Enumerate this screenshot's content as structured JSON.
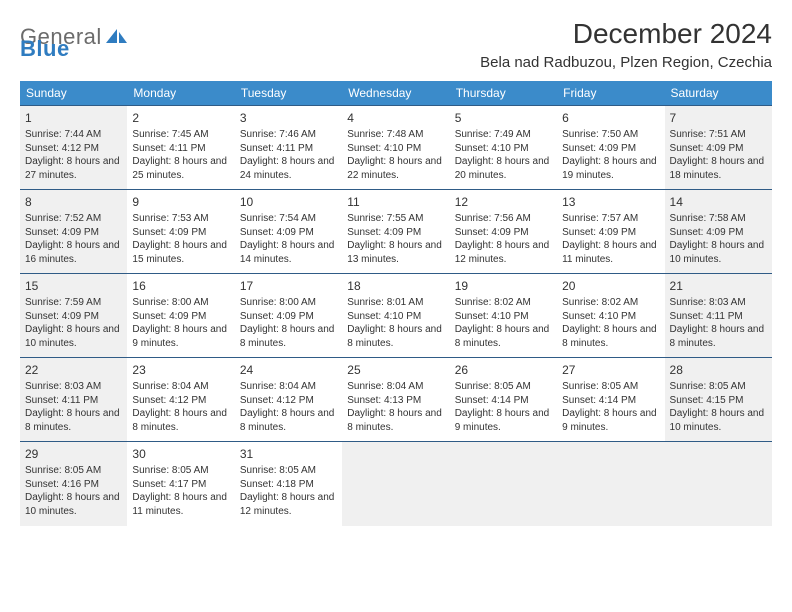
{
  "brand": {
    "part1": "General",
    "part2": "Blue"
  },
  "title": "December 2024",
  "location": "Bela nad Radbuzou, Plzen Region, Czechia",
  "colors": {
    "header_bg": "#3b8bca",
    "header_text": "#ffffff",
    "rule": "#2f5b86",
    "shaded_bg": "#f0f0f0",
    "body_bg": "#ffffff",
    "text": "#333333",
    "brand_gray": "#6b6b6b",
    "brand_blue": "#2f7cc0"
  },
  "dow": [
    "Sunday",
    "Monday",
    "Tuesday",
    "Wednesday",
    "Thursday",
    "Friday",
    "Saturday"
  ],
  "weeks": [
    [
      {
        "n": 1,
        "sr": "7:44 AM",
        "ss": "4:12 PM",
        "dl": "8 hours and 27 minutes.",
        "sh": true
      },
      {
        "n": 2,
        "sr": "7:45 AM",
        "ss": "4:11 PM",
        "dl": "8 hours and 25 minutes."
      },
      {
        "n": 3,
        "sr": "7:46 AM",
        "ss": "4:11 PM",
        "dl": "8 hours and 24 minutes."
      },
      {
        "n": 4,
        "sr": "7:48 AM",
        "ss": "4:10 PM",
        "dl": "8 hours and 22 minutes."
      },
      {
        "n": 5,
        "sr": "7:49 AM",
        "ss": "4:10 PM",
        "dl": "8 hours and 20 minutes."
      },
      {
        "n": 6,
        "sr": "7:50 AM",
        "ss": "4:09 PM",
        "dl": "8 hours and 19 minutes."
      },
      {
        "n": 7,
        "sr": "7:51 AM",
        "ss": "4:09 PM",
        "dl": "8 hours and 18 minutes.",
        "sh": true
      }
    ],
    [
      {
        "n": 8,
        "sr": "7:52 AM",
        "ss": "4:09 PM",
        "dl": "8 hours and 16 minutes.",
        "sh": true
      },
      {
        "n": 9,
        "sr": "7:53 AM",
        "ss": "4:09 PM",
        "dl": "8 hours and 15 minutes."
      },
      {
        "n": 10,
        "sr": "7:54 AM",
        "ss": "4:09 PM",
        "dl": "8 hours and 14 minutes."
      },
      {
        "n": 11,
        "sr": "7:55 AM",
        "ss": "4:09 PM",
        "dl": "8 hours and 13 minutes."
      },
      {
        "n": 12,
        "sr": "7:56 AM",
        "ss": "4:09 PM",
        "dl": "8 hours and 12 minutes."
      },
      {
        "n": 13,
        "sr": "7:57 AM",
        "ss": "4:09 PM",
        "dl": "8 hours and 11 minutes."
      },
      {
        "n": 14,
        "sr": "7:58 AM",
        "ss": "4:09 PM",
        "dl": "8 hours and 10 minutes.",
        "sh": true
      }
    ],
    [
      {
        "n": 15,
        "sr": "7:59 AM",
        "ss": "4:09 PM",
        "dl": "8 hours and 10 minutes.",
        "sh": true
      },
      {
        "n": 16,
        "sr": "8:00 AM",
        "ss": "4:09 PM",
        "dl": "8 hours and 9 minutes."
      },
      {
        "n": 17,
        "sr": "8:00 AM",
        "ss": "4:09 PM",
        "dl": "8 hours and 8 minutes."
      },
      {
        "n": 18,
        "sr": "8:01 AM",
        "ss": "4:10 PM",
        "dl": "8 hours and 8 minutes."
      },
      {
        "n": 19,
        "sr": "8:02 AM",
        "ss": "4:10 PM",
        "dl": "8 hours and 8 minutes."
      },
      {
        "n": 20,
        "sr": "8:02 AM",
        "ss": "4:10 PM",
        "dl": "8 hours and 8 minutes."
      },
      {
        "n": 21,
        "sr": "8:03 AM",
        "ss": "4:11 PM",
        "dl": "8 hours and 8 minutes.",
        "sh": true
      }
    ],
    [
      {
        "n": 22,
        "sr": "8:03 AM",
        "ss": "4:11 PM",
        "dl": "8 hours and 8 minutes.",
        "sh": true
      },
      {
        "n": 23,
        "sr": "8:04 AM",
        "ss": "4:12 PM",
        "dl": "8 hours and 8 minutes."
      },
      {
        "n": 24,
        "sr": "8:04 AM",
        "ss": "4:12 PM",
        "dl": "8 hours and 8 minutes."
      },
      {
        "n": 25,
        "sr": "8:04 AM",
        "ss": "4:13 PM",
        "dl": "8 hours and 8 minutes."
      },
      {
        "n": 26,
        "sr": "8:05 AM",
        "ss": "4:14 PM",
        "dl": "8 hours and 9 minutes."
      },
      {
        "n": 27,
        "sr": "8:05 AM",
        "ss": "4:14 PM",
        "dl": "8 hours and 9 minutes."
      },
      {
        "n": 28,
        "sr": "8:05 AM",
        "ss": "4:15 PM",
        "dl": "8 hours and 10 minutes.",
        "sh": true
      }
    ],
    [
      {
        "n": 29,
        "sr": "8:05 AM",
        "ss": "4:16 PM",
        "dl": "8 hours and 10 minutes.",
        "sh": true
      },
      {
        "n": 30,
        "sr": "8:05 AM",
        "ss": "4:17 PM",
        "dl": "8 hours and 11 minutes."
      },
      {
        "n": 31,
        "sr": "8:05 AM",
        "ss": "4:18 PM",
        "dl": "8 hours and 12 minutes."
      },
      {
        "blank": true
      },
      {
        "blank": true
      },
      {
        "blank": true
      },
      {
        "blank": true
      }
    ]
  ],
  "labels": {
    "sunrise": "Sunrise: ",
    "sunset": "Sunset: ",
    "daylight": "Daylight: "
  }
}
